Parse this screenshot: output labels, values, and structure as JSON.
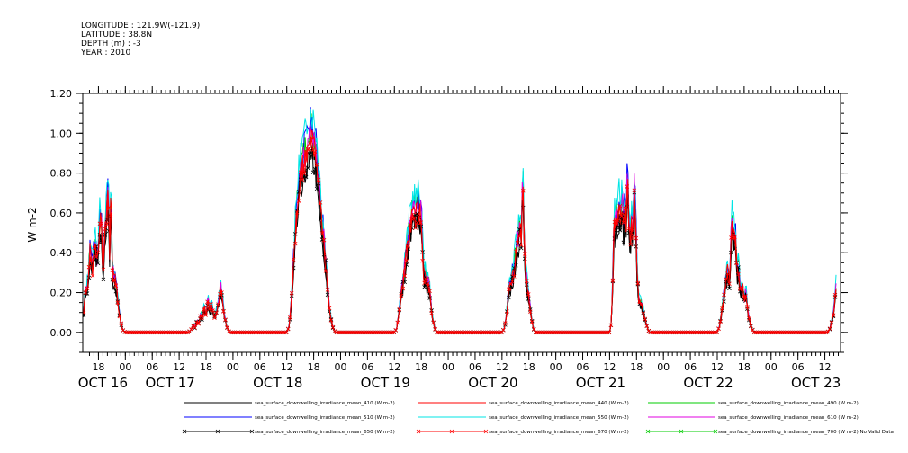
{
  "header": {
    "lines": [
      "LONGITUDE : 121.9W(-121.9)",
      "LATITUDE : 38.8N",
      "DEPTH (m) : -3",
      "YEAR : 2010"
    ]
  },
  "colors": {
    "s410": "#000000",
    "s440": "#ff0000",
    "s490": "#00cc00",
    "s510": "#0000ff",
    "s550": "#00e5e5",
    "s610": "#e000e0",
    "s650": "#000000",
    "s670": "#ff0000",
    "s700": "#00cc00"
  },
  "chart_data": {
    "type": "line",
    "title": "",
    "xlabel": "",
    "ylabel": "W m-2",
    "ylim": [
      -0.1,
      1.2
    ],
    "yticks": [
      0.0,
      0.2,
      0.4,
      0.6,
      0.8,
      1.0,
      1.2
    ],
    "ytick_labels": [
      "0.00",
      "0.20",
      "0.40",
      "0.60",
      "0.80",
      "1.00",
      "1.20"
    ],
    "x_unit": "hours since OCT 16 00:00",
    "xlim": [
      14.5,
      183.5
    ],
    "hour_ticks": [
      {
        "t": 18,
        "label": "18"
      },
      {
        "t": 24,
        "label": "00"
      },
      {
        "t": 30,
        "label": "06"
      },
      {
        "t": 36,
        "label": "12"
      },
      {
        "t": 42,
        "label": "18"
      },
      {
        "t": 48,
        "label": "00"
      },
      {
        "t": 54,
        "label": "06"
      },
      {
        "t": 60,
        "label": "12"
      },
      {
        "t": 66,
        "label": "18"
      },
      {
        "t": 72,
        "label": "00"
      },
      {
        "t": 78,
        "label": "06"
      },
      {
        "t": 84,
        "label": "12"
      },
      {
        "t": 90,
        "label": "18"
      },
      {
        "t": 96,
        "label": "00"
      },
      {
        "t": 102,
        "label": "06"
      },
      {
        "t": 108,
        "label": "12"
      },
      {
        "t": 114,
        "label": "18"
      },
      {
        "t": 120,
        "label": "00"
      },
      {
        "t": 126,
        "label": "06"
      },
      {
        "t": 132,
        "label": "12"
      },
      {
        "t": 138,
        "label": "18"
      },
      {
        "t": 144,
        "label": "00"
      },
      {
        "t": 150,
        "label": "06"
      },
      {
        "t": 156,
        "label": "12"
      },
      {
        "t": 162,
        "label": "18"
      },
      {
        "t": 168,
        "label": "00"
      },
      {
        "t": 174,
        "label": "06"
      },
      {
        "t": 180,
        "label": "12"
      }
    ],
    "date_labels": [
      {
        "t": 19,
        "label": "OCT 16"
      },
      {
        "t": 34,
        "label": "OCT 17"
      },
      {
        "t": 58,
        "label": "OCT 18"
      },
      {
        "t": 82,
        "label": "OCT 19"
      },
      {
        "t": 106,
        "label": "OCT 20"
      },
      {
        "t": 130,
        "label": "OCT 21"
      },
      {
        "t": 154,
        "label": "OCT 22"
      },
      {
        "t": 178,
        "label": "OCT 23"
      }
    ],
    "base_series": {
      "name": "sea_surface_downwelling_irradiance_mean_670 (W m-2)",
      "points": [
        [
          14.7,
          0.09
        ],
        [
          15.0,
          0.19
        ],
        [
          15.4,
          0.2
        ],
        [
          15.8,
          0.28
        ],
        [
          16.2,
          0.42
        ],
        [
          16.6,
          0.3
        ],
        [
          17.0,
          0.38
        ],
        [
          17.4,
          0.44
        ],
        [
          17.8,
          0.33
        ],
        [
          18.2,
          0.5
        ],
        [
          18.6,
          0.58
        ],
        [
          19.0,
          0.28
        ],
        [
          19.4,
          0.47
        ],
        [
          19.8,
          0.55
        ],
        [
          20.2,
          0.7
        ],
        [
          20.5,
          0.38
        ],
        [
          20.8,
          0.72
        ],
        [
          21.1,
          0.3
        ],
        [
          21.4,
          0.26
        ],
        [
          21.8,
          0.25
        ],
        [
          22.2,
          0.18
        ],
        [
          22.6,
          0.1
        ],
        [
          23.0,
          0.05
        ],
        [
          23.5,
          0.01
        ],
        [
          24.0,
          0.0
        ],
        [
          38.0,
          0.0
        ],
        [
          38.6,
          0.01
        ],
        [
          39.2,
          0.04
        ],
        [
          39.6,
          0.02
        ],
        [
          40.0,
          0.06
        ],
        [
          40.4,
          0.04
        ],
        [
          40.8,
          0.09
        ],
        [
          41.2,
          0.06
        ],
        [
          41.6,
          0.13
        ],
        [
          42.0,
          0.08
        ],
        [
          42.4,
          0.16
        ],
        [
          42.8,
          0.1
        ],
        [
          43.2,
          0.14
        ],
        [
          43.6,
          0.09
        ],
        [
          44.0,
          0.07
        ],
        [
          44.4,
          0.11
        ],
        [
          44.8,
          0.14
        ],
        [
          45.2,
          0.22
        ],
        [
          45.6,
          0.18
        ],
        [
          46.0,
          0.09
        ],
        [
          46.6,
          0.03
        ],
        [
          47.2,
          0.0
        ],
        [
          60.0,
          0.0
        ],
        [
          60.5,
          0.03
        ],
        [
          61.0,
          0.14
        ],
        [
          61.5,
          0.33
        ],
        [
          62.0,
          0.52
        ],
        [
          62.5,
          0.66
        ],
        [
          63.0,
          0.77
        ],
        [
          63.5,
          0.8
        ],
        [
          64.0,
          0.84
        ],
        [
          64.5,
          0.88
        ],
        [
          64.8,
          0.95
        ],
        [
          65.1,
          0.91
        ],
        [
          65.4,
          0.96
        ],
        [
          65.7,
          0.93
        ],
        [
          66.0,
          0.9
        ],
        [
          66.4,
          0.88
        ],
        [
          66.8,
          0.8
        ],
        [
          67.2,
          0.7
        ],
        [
          67.6,
          0.6
        ],
        [
          68.0,
          0.51
        ],
        [
          68.5,
          0.39
        ],
        [
          69.0,
          0.25
        ],
        [
          69.5,
          0.12
        ],
        [
          70.0,
          0.05
        ],
        [
          70.5,
          0.01
        ],
        [
          71.0,
          0.0
        ],
        [
          84.0,
          0.0
        ],
        [
          84.5,
          0.02
        ],
        [
          85.0,
          0.09
        ],
        [
          85.5,
          0.18
        ],
        [
          86.0,
          0.25
        ],
        [
          86.5,
          0.35
        ],
        [
          87.0,
          0.43
        ],
        [
          87.5,
          0.52
        ],
        [
          88.0,
          0.57
        ],
        [
          88.4,
          0.6
        ],
        [
          88.8,
          0.56
        ],
        [
          89.2,
          0.6
        ],
        [
          89.6,
          0.58
        ],
        [
          90.0,
          0.57
        ],
        [
          90.3,
          0.4
        ],
        [
          90.6,
          0.25
        ],
        [
          90.9,
          0.3
        ],
        [
          91.2,
          0.22
        ],
        [
          91.6,
          0.24
        ],
        [
          92.0,
          0.18
        ],
        [
          92.4,
          0.08
        ],
        [
          93.0,
          0.02
        ],
        [
          93.5,
          0.0
        ],
        [
          108.0,
          0.0
        ],
        [
          108.5,
          0.02
        ],
        [
          109.0,
          0.08
        ],
        [
          109.5,
          0.2
        ],
        [
          110.0,
          0.24
        ],
        [
          110.4,
          0.28
        ],
        [
          110.8,
          0.32
        ],
        [
          111.2,
          0.4
        ],
        [
          111.6,
          0.44
        ],
        [
          112.0,
          0.52
        ],
        [
          112.3,
          0.45
        ],
        [
          112.6,
          0.78
        ],
        [
          112.9,
          0.5
        ],
        [
          113.2,
          0.3
        ],
        [
          113.5,
          0.25
        ],
        [
          114.0,
          0.17
        ],
        [
          114.5,
          0.08
        ],
        [
          115.0,
          0.02
        ],
        [
          115.5,
          0.0
        ],
        [
          132.0,
          0.0
        ],
        [
          132.4,
          0.05
        ],
        [
          132.7,
          0.25
        ],
        [
          133.0,
          0.55
        ],
        [
          133.3,
          0.52
        ],
        [
          133.6,
          0.58
        ],
        [
          133.9,
          0.55
        ],
        [
          134.2,
          0.62
        ],
        [
          134.5,
          0.55
        ],
        [
          134.8,
          0.65
        ],
        [
          135.1,
          0.52
        ],
        [
          135.4,
          0.6
        ],
        [
          135.7,
          0.55
        ],
        [
          136.0,
          0.78
        ],
        [
          136.3,
          0.5
        ],
        [
          136.6,
          0.45
        ],
        [
          136.9,
          0.55
        ],
        [
          137.2,
          0.48
        ],
        [
          137.5,
          0.7
        ],
        [
          137.8,
          0.55
        ],
        [
          138.1,
          0.3
        ],
        [
          138.5,
          0.15
        ],
        [
          138.9,
          0.14
        ],
        [
          139.3,
          0.12
        ],
        [
          139.7,
          0.08
        ],
        [
          140.1,
          0.05
        ],
        [
          140.6,
          0.01
        ],
        [
          141.0,
          0.0
        ],
        [
          156.0,
          0.0
        ],
        [
          156.5,
          0.03
        ],
        [
          157.0,
          0.1
        ],
        [
          157.5,
          0.18
        ],
        [
          158.0,
          0.27
        ],
        [
          158.4,
          0.3
        ],
        [
          158.8,
          0.22
        ],
        [
          159.2,
          0.56
        ],
        [
          159.6,
          0.45
        ],
        [
          160.0,
          0.5
        ],
        [
          160.4,
          0.28
        ],
        [
          160.8,
          0.32
        ],
        [
          161.2,
          0.18
        ],
        [
          161.6,
          0.23
        ],
        [
          162.0,
          0.15
        ],
        [
          162.4,
          0.2
        ],
        [
          162.8,
          0.1
        ],
        [
          163.2,
          0.06
        ],
        [
          163.7,
          0.02
        ],
        [
          164.2,
          0.0
        ],
        [
          180.5,
          0.0
        ],
        [
          181.0,
          0.01
        ],
        [
          181.5,
          0.05
        ],
        [
          182.0,
          0.1
        ],
        [
          182.5,
          0.22
        ]
      ]
    },
    "series": [
      {
        "name": "sea_surface_downwelling_irradiance_mean_410 (W m-2)",
        "color": "#000000",
        "scale": 0.93,
        "jitter": 0.04,
        "seed": 3,
        "marker": false
      },
      {
        "name": "sea_surface_downwelling_irradiance_mean_440 (W m-2)",
        "color": "#ff0000",
        "scale": 1.03,
        "jitter": 0.04,
        "seed": 5,
        "marker": false
      },
      {
        "name": "sea_surface_downwelling_irradiance_mean_490 (W m-2)",
        "color": "#00cc00",
        "scale": 1.1,
        "jitter": 0.04,
        "seed": 7,
        "marker": false
      },
      {
        "name": "sea_surface_downwelling_irradiance_mean_510 (W m-2)",
        "color": "#0000ff",
        "scale": 1.12,
        "jitter": 0.04,
        "seed": 11,
        "marker": false
      },
      {
        "name": "sea_surface_downwelling_irradiance_mean_550 (W m-2)",
        "color": "#00e5e5",
        "scale": 1.18,
        "jitter": 0.045,
        "seed": 13,
        "marker": false
      },
      {
        "name": "sea_surface_downwelling_irradiance_mean_610 (W m-2)",
        "color": "#e000e0",
        "scale": 1.06,
        "jitter": 0.04,
        "seed": 17,
        "marker": false
      },
      {
        "name": "sea_surface_downwelling_irradiance_mean_650 (W m-2)",
        "color": "#000000",
        "scale": 0.95,
        "jitter": 0.035,
        "seed": 19,
        "marker": true
      },
      {
        "name": "sea_surface_downwelling_irradiance_mean_670 (W m-2)",
        "color": "#ff0000",
        "scale": 1.0,
        "jitter": 0.03,
        "seed": 23,
        "marker": true
      },
      {
        "name": "sea_surface_downwelling_irradiance_mean_700 (W m-2) No Valid Data",
        "color": "#00cc00",
        "scale": 0,
        "jitter": 0,
        "seed": 0,
        "marker": true,
        "no_data": true
      }
    ],
    "draw_order": [
      2,
      3,
      4,
      5,
      0,
      1,
      6,
      7
    ],
    "grid": false,
    "legend_placement": "bottom"
  }
}
